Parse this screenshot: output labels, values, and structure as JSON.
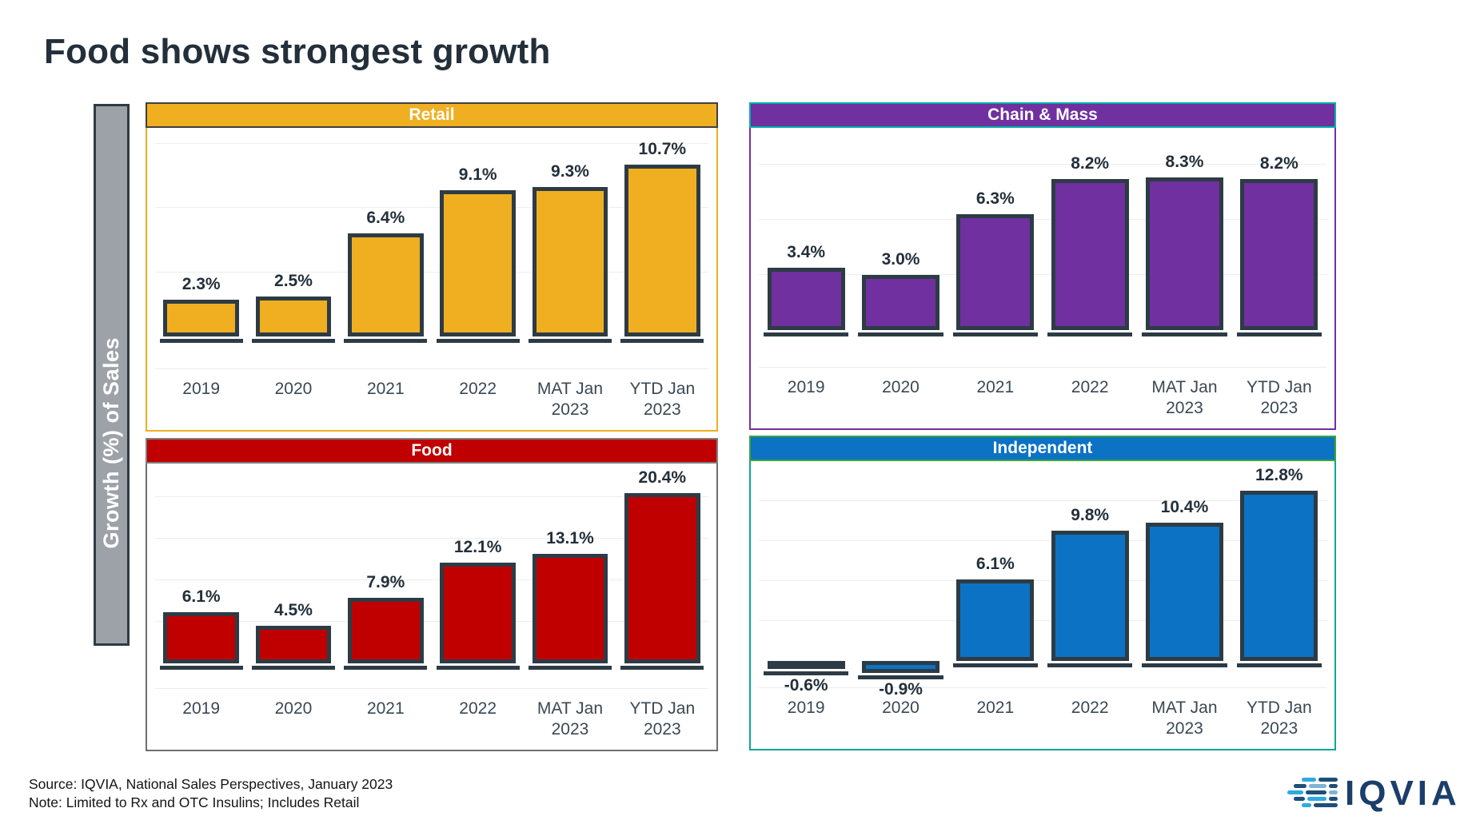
{
  "title": "Food shows strongest growth",
  "y_axis_label": "Growth (%) of Sales",
  "source": {
    "line1": "Source: IQVIA, National Sales Perspectives, January 2023",
    "line2": "Note: Limited to Rx and OTC Insulins; Includes Retail"
  },
  "logo": {
    "text": "IQVIA"
  },
  "colors": {
    "title_text": "#232F3A",
    "bar_outline": "#2D3B45",
    "axis_strip_fill": "#9CA2A8",
    "axis_strip_text": "#FFFFFF",
    "x_label_text": "#3B4853",
    "logo_navy": "#1B3E6B",
    "logo_light_blue": "#2FA9E1"
  },
  "chart_data": [
    {
      "type": "bar",
      "title": "Retail",
      "header_fill": "#EFAF21",
      "header_border": "#3F3F3F",
      "panel_border": "#EFAF21",
      "bar_fill": "#EFAF21",
      "categories": [
        "2019",
        "2020",
        "2021",
        "2022",
        "MAT Jan 2023",
        "YTD Jan 2023"
      ],
      "values": [
        2.3,
        2.5,
        6.4,
        9.1,
        9.3,
        10.7
      ],
      "value_labels": [
        "2.3%",
        "2.5%",
        "6.4%",
        "9.1%",
        "9.3%",
        "10.7%"
      ],
      "ylabel": "Growth (%) of Sales",
      "ylim": [
        -2,
        13
      ],
      "gridlines": [
        4,
        8,
        12
      ],
      "legend": "none",
      "grid": "horizontal-faint"
    },
    {
      "type": "bar",
      "title": "Chain & Mass",
      "header_fill": "#7030A0",
      "header_border": "#00B2A9",
      "panel_border": "#7030A0",
      "bar_fill": "#7030A0",
      "categories": [
        "2019",
        "2020",
        "2021",
        "2022",
        "MAT Jan 2023",
        "YTD Jan 2023"
      ],
      "values": [
        3.4,
        3.0,
        6.3,
        8.2,
        8.3,
        8.2
      ],
      "value_labels": [
        "3.4%",
        "3.0%",
        "6.3%",
        "8.2%",
        "8.3%",
        "8.2%"
      ],
      "ylabel": "Growth (%) of Sales",
      "ylim": [
        -2,
        11
      ],
      "gridlines": [
        3,
        6,
        9
      ],
      "legend": "none",
      "grid": "horizontal-faint"
    },
    {
      "type": "bar",
      "title": "Food",
      "header_fill": "#C00000",
      "header_border": "#7F7F7F",
      "panel_border": "#6F6F6F",
      "bar_fill": "#C00000",
      "categories": [
        "2019",
        "2020",
        "2021",
        "2022",
        "MAT Jan 2023",
        "YTD Jan 2023"
      ],
      "values": [
        6.1,
        4.5,
        7.9,
        12.1,
        13.1,
        20.4
      ],
      "value_labels": [
        "6.1%",
        "4.5%",
        "7.9%",
        "12.1%",
        "13.1%",
        "20.4%"
      ],
      "ylabel": "Growth (%) of Sales",
      "ylim": [
        -3,
        24
      ],
      "gridlines": [
        5,
        10,
        15,
        20
      ],
      "legend": "none",
      "grid": "horizontal-faint"
    },
    {
      "type": "bar",
      "title": "Independent",
      "header_fill": "#0B72C4",
      "header_border": "#3EA636",
      "panel_border": "#0CA793",
      "bar_fill": "#0B72C4",
      "categories": [
        "2019",
        "2020",
        "2021",
        "2022",
        "MAT Jan 2023",
        "YTD Jan 2023"
      ],
      "values": [
        -0.6,
        -0.9,
        6.1,
        9.8,
        10.4,
        12.8
      ],
      "value_labels": [
        "-0.6%",
        "-0.9%",
        "6.1%",
        "9.8%",
        "10.4%",
        "12.8%"
      ],
      "ylabel": "Growth (%) of Sales",
      "ylim": [
        -2,
        15
      ],
      "gridlines": [
        3,
        6,
        9,
        12
      ],
      "legend": "none",
      "grid": "horizontal-faint"
    }
  ]
}
